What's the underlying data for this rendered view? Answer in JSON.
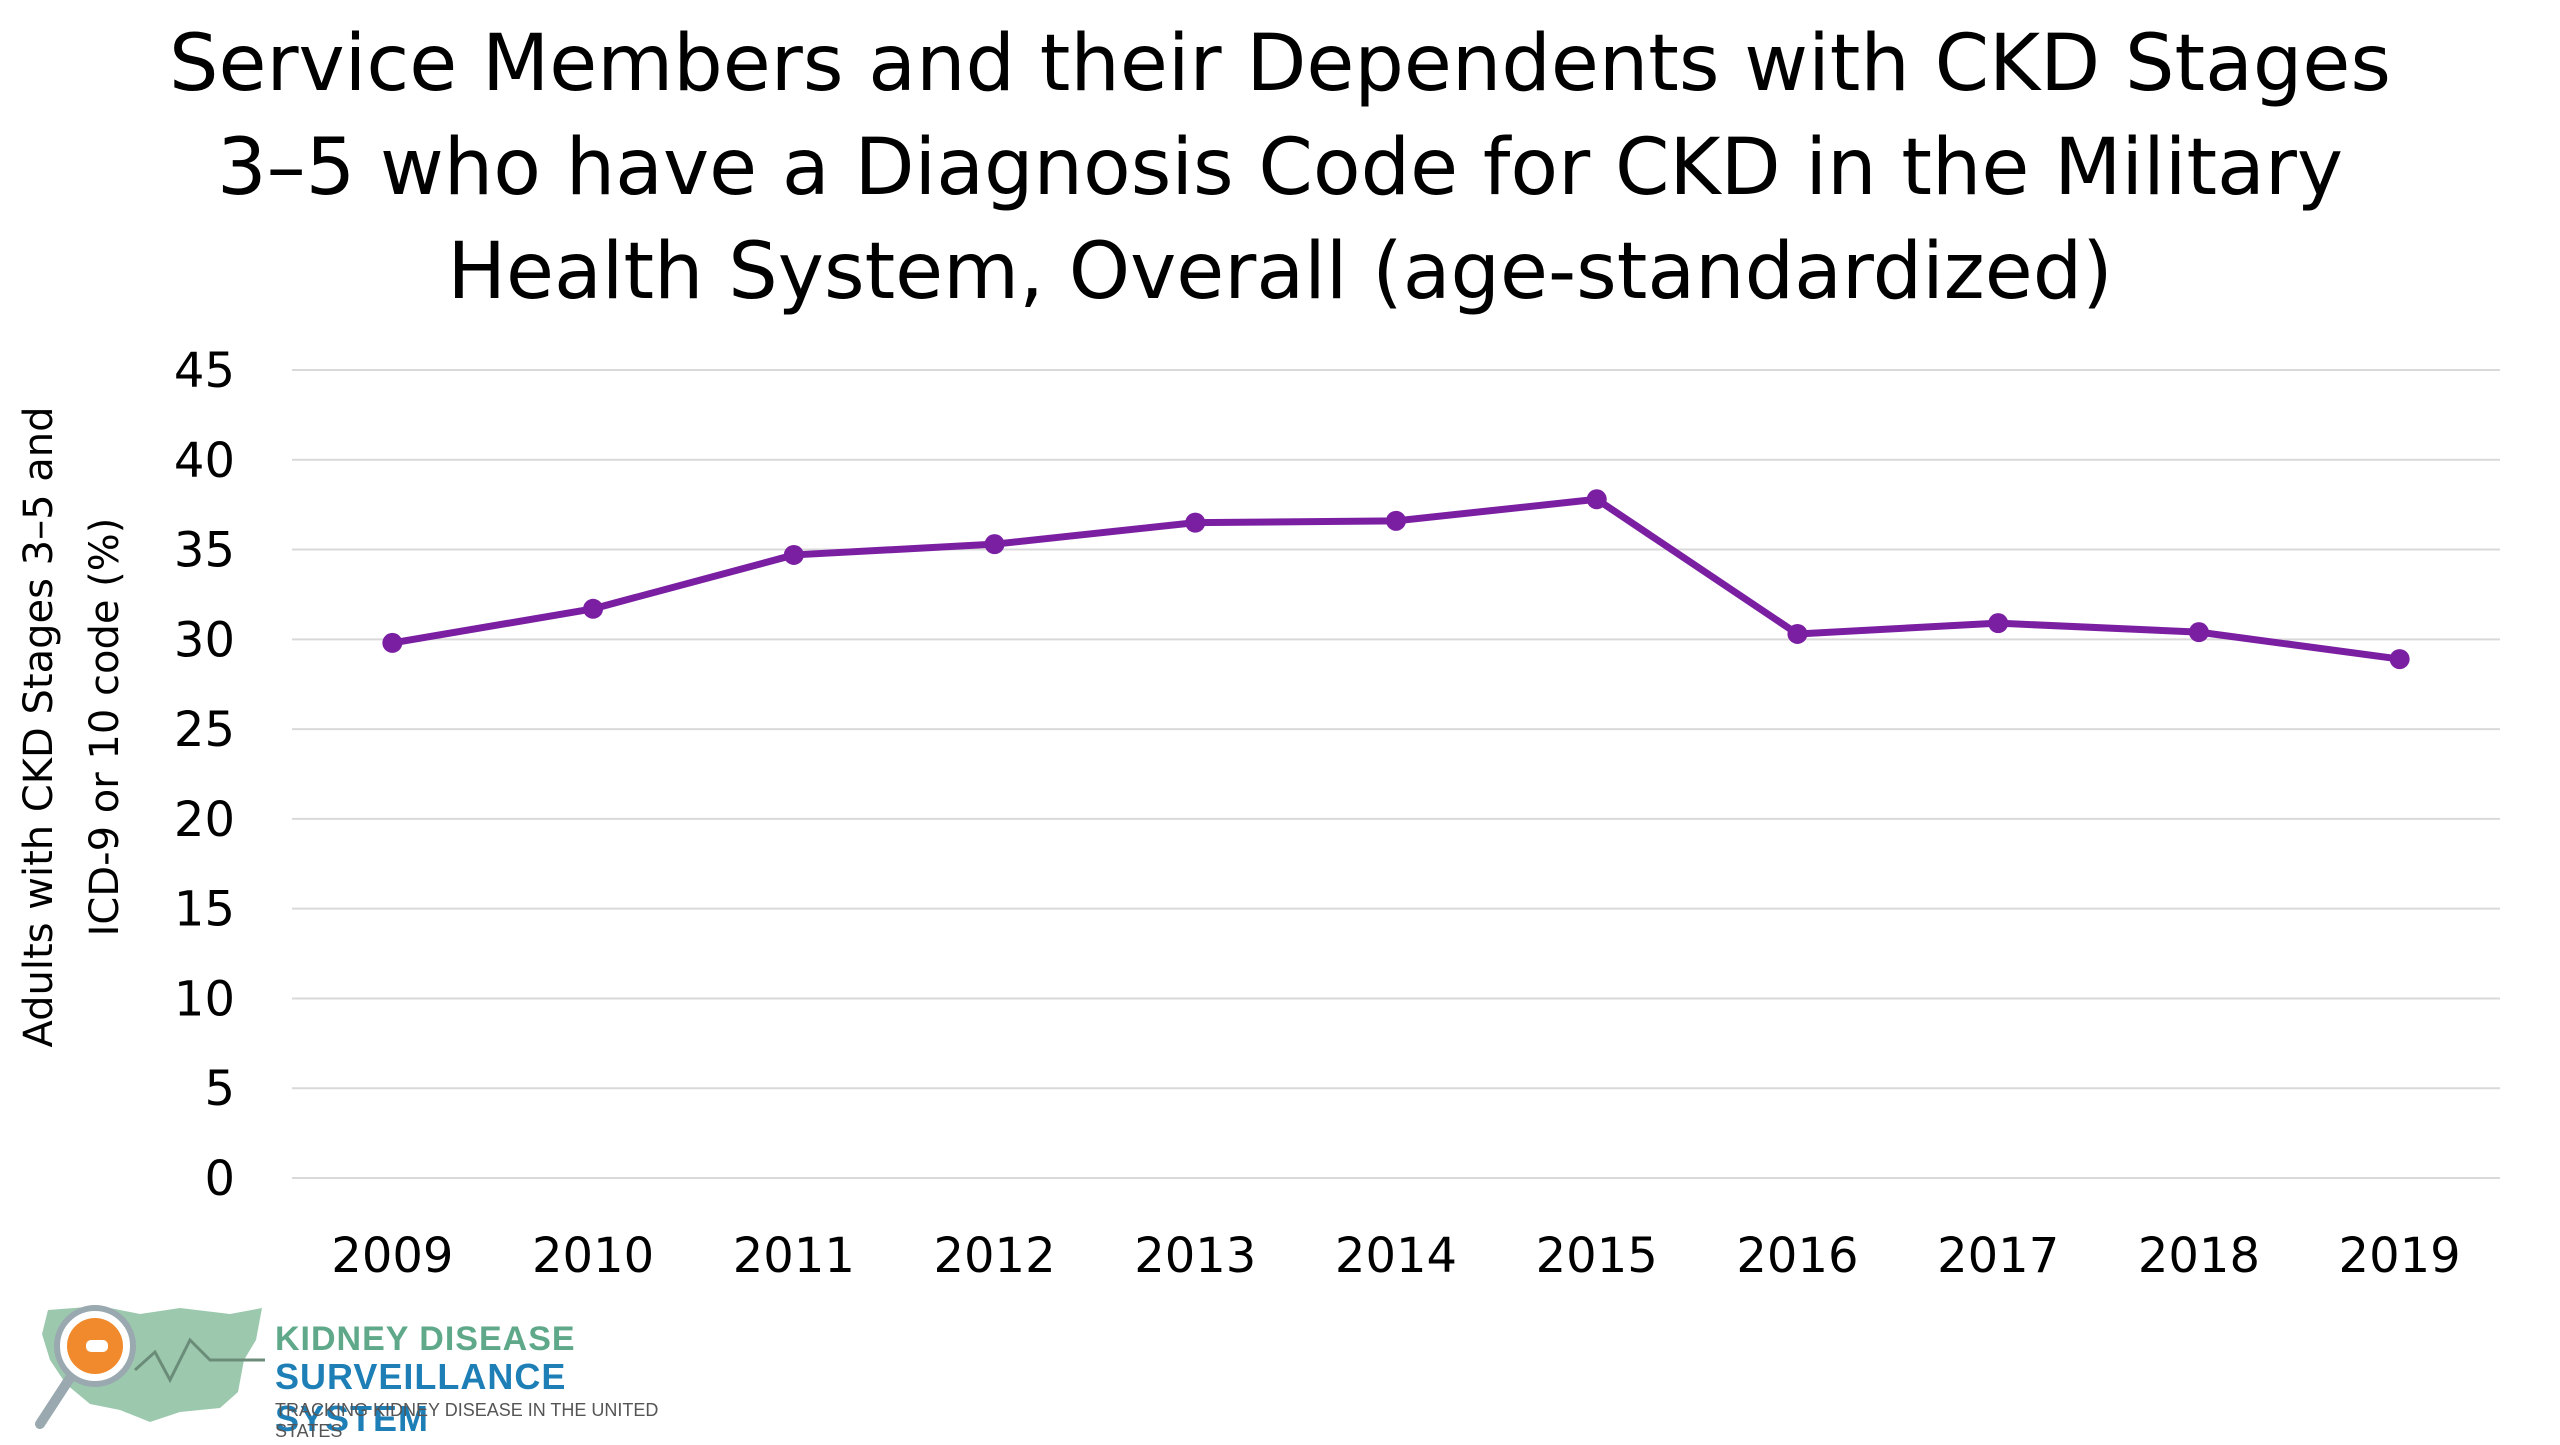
{
  "chart_data": {
    "type": "line",
    "title": "Service Members and their Dependents with CKD Stages 3–5 who have a Diagnosis Code for CKD in the Military Health System, Overall (age-standardized)",
    "ylabel_line1": "Adults with CKD Stages 3–5 and",
    "ylabel_line2": "ICD-9 or 10 code (%)",
    "xlabel": "",
    "categories": [
      "2009",
      "2010",
      "2011",
      "2012",
      "2013",
      "2014",
      "2015",
      "2016",
      "2017",
      "2018",
      "2019"
    ],
    "series": [
      {
        "values": [
          29.8,
          31.7,
          34.7,
          35.3,
          36.5,
          36.6,
          37.8,
          30.3,
          30.9,
          30.4,
          28.9
        ],
        "color": "#7b1fa2"
      }
    ],
    "ylim": [
      0,
      45
    ],
    "yticks": [
      "0",
      "5",
      "10",
      "15",
      "20",
      "25",
      "30",
      "35",
      "40",
      "45"
    ],
    "grid": true,
    "legend": "none"
  },
  "logo": {
    "line1": "KIDNEY DISEASE",
    "line2": "SURVEILLANCE SYSTEM",
    "line3": "TRACKING KIDNEY DISEASE IN THE UNITED STATES",
    "icon": "magnifier-us-map-icon"
  }
}
